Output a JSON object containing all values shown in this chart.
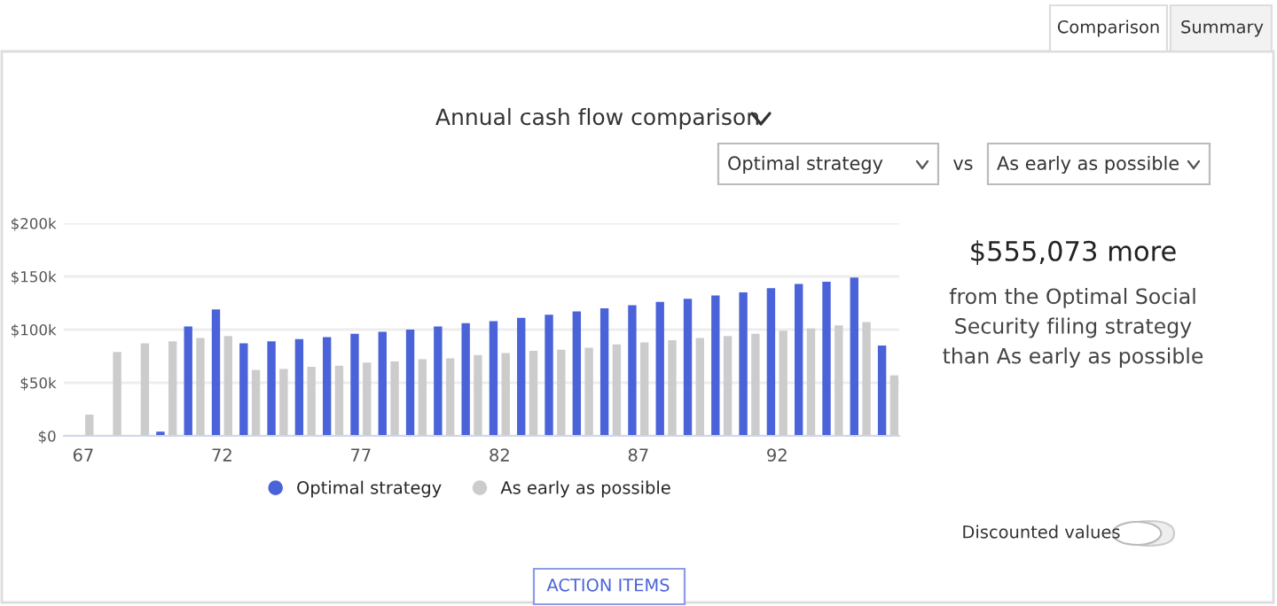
{
  "chart_data": {
    "type": "bar",
    "title": "Annual cash flow comparison",
    "categories": [
      "67",
      null,
      null,
      null,
      null,
      "72",
      null,
      null,
      null,
      null,
      "77",
      null,
      null,
      null,
      null,
      "82",
      null,
      null,
      null,
      null,
      "87",
      null,
      null,
      null,
      null,
      "92",
      null,
      null,
      null,
      null
    ],
    "series": [
      {
        "name": "Optimal strategy",
        "color": "#4a63d9",
        "values": [
          0,
          0,
          0,
          4,
          103,
          119,
          87,
          89,
          91,
          93,
          96,
          98,
          100,
          103,
          106,
          108,
          111,
          114,
          117,
          120,
          123,
          126,
          129,
          132,
          135,
          139,
          143,
          145,
          149,
          85
        ]
      },
      {
        "name": "As early as possible",
        "color": "#cccccc",
        "values": [
          20,
          79,
          87,
          89,
          92,
          94,
          62,
          63,
          65,
          66,
          69,
          70,
          72,
          73,
          76,
          78,
          80,
          81,
          83,
          86,
          88,
          90,
          92,
          94,
          96,
          99,
          101,
          104,
          107,
          57
        ]
      }
    ],
    "ylim": [
      0,
      200
    ],
    "yticks": [
      {
        "value": 0,
        "label": "$0"
      },
      {
        "value": 50,
        "label": "$50k"
      },
      {
        "value": 100,
        "label": "$100k"
      },
      {
        "value": 150,
        "label": "$150k"
      },
      {
        "value": 200,
        "label": "$200k"
      }
    ],
    "grid": "y",
    "legend": "bottom",
    "annotations": [
      "$555,073 more",
      "from the Optimal Social\nSecurity filing strategy\nthan As early as possible",
      "Comparison",
      "Summary",
      "Optimal strategy",
      "vs",
      "As early as possible",
      "Discounted values",
      "ACTION ITEMS"
    ]
  }
}
